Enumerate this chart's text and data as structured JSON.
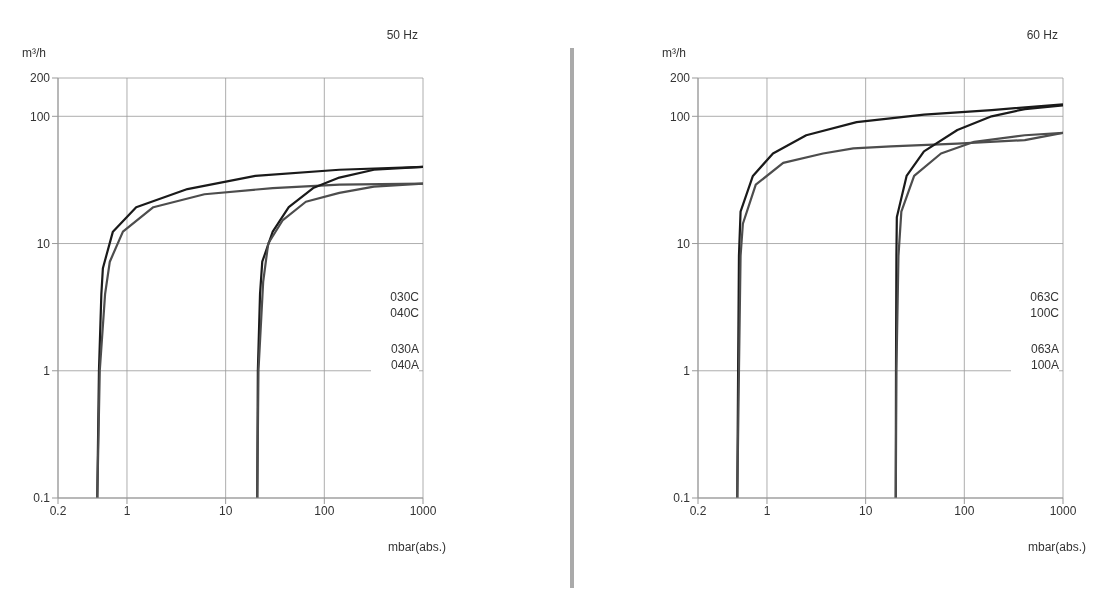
{
  "chart_data": [
    {
      "type": "line",
      "title": "50 Hz",
      "ylabel": "m³/h",
      "xlabel": "mbar(abs.)",
      "log": "xy",
      "grid": true,
      "xlim": [
        0.2,
        1000
      ],
      "xticks": [
        0.2,
        1,
        10,
        100,
        1000
      ],
      "ylim": [
        0.1,
        200
      ],
      "yticks": [
        0.1,
        1,
        10,
        100,
        200
      ],
      "series": [
        {
          "color": "#1a1a1a",
          "x": [
            0.5,
            0.52,
            0.55,
            0.57,
            0.72,
            1.24,
            4.1,
            20,
            142,
            1000
          ],
          "values": [
            0.1,
            1,
            4,
            6.4,
            12.4,
            19.3,
            26.8,
            34,
            38,
            40
          ]
        },
        {
          "color": "#4d4d4d",
          "x": [
            0.5,
            0.53,
            0.6,
            0.67,
            0.91,
            1.85,
            6.1,
            30,
            142,
            1000
          ],
          "values": [
            0.1,
            1,
            4,
            7.2,
            12.4,
            19.3,
            24.4,
            27.3,
            29,
            29.6
          ]
        },
        {
          "color": "#1a1a1a",
          "x": [
            20.9,
            21.2,
            22.3,
            23.5,
            30,
            43.6,
            77,
            142,
            318,
            1000
          ],
          "values": [
            0.1,
            1,
            4,
            7.2,
            12.4,
            19.3,
            27.3,
            33,
            38,
            40
          ]
        },
        {
          "color": "#4d4d4d",
          "x": [
            20.9,
            21.5,
            24,
            27,
            38,
            65,
            142,
            318,
            1000
          ],
          "values": [
            0.1,
            1,
            5,
            10,
            15.3,
            21.3,
            25,
            28,
            29.6
          ]
        }
      ],
      "annotations": [
        "030C",
        "040C",
        "030A",
        "040A"
      ]
    },
    {
      "type": "line",
      "title": "60 Hz",
      "ylabel": "m³/h",
      "xlabel": "mbar(abs.)",
      "log": "xy",
      "grid": true,
      "xlim": [
        0.2,
        1000
      ],
      "xticks": [
        0.2,
        1,
        10,
        100,
        1000
      ],
      "ylim": [
        0.1,
        200
      ],
      "yticks": [
        0.1,
        1,
        10,
        100,
        200
      ],
      "series": [
        {
          "color": "#1a1a1a",
          "x": [
            0.5,
            0.51,
            0.52,
            0.54,
            0.72,
            1.15,
            2.5,
            8.1,
            39,
            189,
            1000
          ],
          "values": [
            0.1,
            1,
            8,
            17.8,
            34,
            51,
            71,
            90,
            103,
            112,
            124
          ]
        },
        {
          "color": "#4d4d4d",
          "x": [
            0.5,
            0.52,
            0.54,
            0.57,
            0.77,
            1.46,
            3.7,
            7.5,
            18,
            85,
            410,
            1000
          ],
          "values": [
            0.1,
            1,
            8,
            14.3,
            29,
            43,
            51,
            56,
            58,
            61,
            65,
            74
          ]
        },
        {
          "color": "#1a1a1a",
          "x": [
            20.2,
            20.3,
            20.5,
            20.7,
            26,
            39,
            85,
            189,
            410,
            1000
          ],
          "values": [
            0.1,
            1,
            8,
            16.1,
            34,
            53,
            78,
            100,
            114,
            122
          ]
        },
        {
          "color": "#4d4d4d",
          "x": [
            20.2,
            20.5,
            21.5,
            23,
            31,
            58,
            126,
            410,
            1000
          ],
          "values": [
            0.1,
            1,
            8,
            17.8,
            34,
            51,
            63,
            71,
            74
          ]
        }
      ],
      "annotations": [
        "063C",
        "100C",
        "063A",
        "100A"
      ]
    }
  ]
}
